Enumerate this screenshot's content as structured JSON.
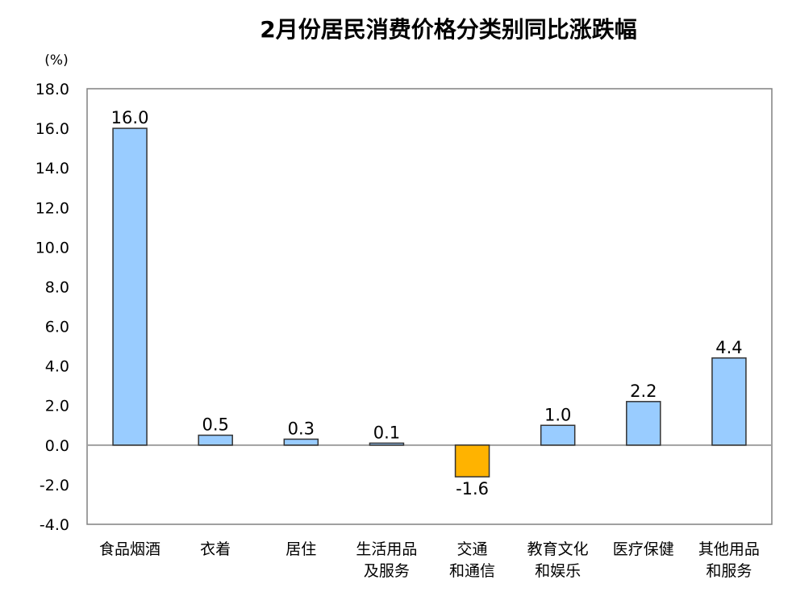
{
  "chart_data": {
    "type": "bar",
    "title": "2月份居民消费价格分类别同比涨跌幅",
    "unit_label": "(%)",
    "categories": [
      [
        "食品烟酒"
      ],
      [
        "衣着"
      ],
      [
        "居住"
      ],
      [
        "生活用品",
        "及服务"
      ],
      [
        "交通",
        "和通信"
      ],
      [
        "教育文化",
        "和娱乐"
      ],
      [
        "医疗保健"
      ],
      [
        "其他用品",
        "和服务"
      ]
    ],
    "values": [
      16.0,
      0.5,
      0.3,
      0.1,
      -1.6,
      1.0,
      2.2,
      4.4
    ],
    "value_labels": [
      "16.0",
      "0.5",
      "0.3",
      "0.1",
      "-1.6",
      "1.0",
      "2.2",
      "4.4"
    ],
    "ylim": [
      -4.0,
      18.0
    ],
    "yticks": [
      "18.0",
      "16.0",
      "14.0",
      "12.0",
      "10.0",
      "8.0",
      "6.0",
      "4.0",
      "2.0",
      "0.0",
      "-2.0",
      "-4.0"
    ],
    "grid": false,
    "colors": {
      "positive_fill": "#99CCFF",
      "negative_fill": "#FFB300",
      "bar_stroke": "#333333",
      "axis": "#808080",
      "zero_line": "#a0a0a0"
    }
  }
}
